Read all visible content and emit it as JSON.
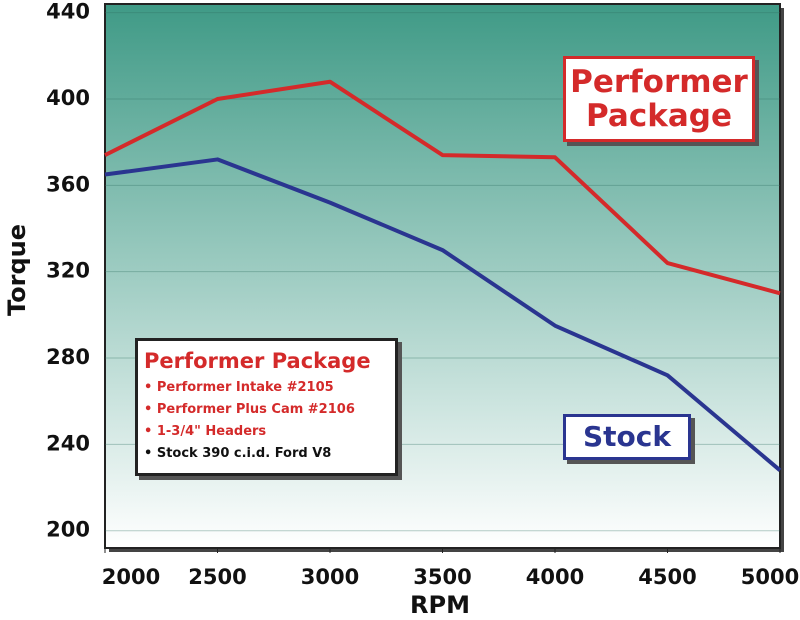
{
  "chart_data": {
    "type": "line",
    "x": [
      2000,
      2500,
      3000,
      3500,
      4000,
      4500,
      5000
    ],
    "xlim": [
      2000,
      5000
    ],
    "xticks": [
      2000,
      2500,
      3000,
      3500,
      4000,
      4500,
      5000
    ],
    "ylim": [
      192,
      444
    ],
    "yticks": [
      200,
      240,
      280,
      320,
      360,
      400,
      440
    ],
    "x_label": "RPM",
    "y_label": "Torque",
    "grid": true,
    "series": [
      {
        "name": "Performer Package",
        "color": "#d42a2a",
        "values": [
          374,
          400,
          408,
          374,
          373,
          324,
          310
        ]
      },
      {
        "name": "Stock",
        "color": "#2a3590",
        "values": [
          365,
          372,
          352,
          330,
          295,
          272,
          228
        ]
      }
    ],
    "legend_box": {
      "title": "Performer Package",
      "items": [
        {
          "text": "Performer Intake #2105",
          "color": "#d42a2a"
        },
        {
          "text": "Performer Plus Cam #2106",
          "color": "#d42a2a"
        },
        {
          "text": "1-3/4\" Headers",
          "color": "#d42a2a"
        },
        {
          "text": "Stock 390 c.i.d. Ford V8",
          "color": "#111111"
        }
      ]
    }
  }
}
